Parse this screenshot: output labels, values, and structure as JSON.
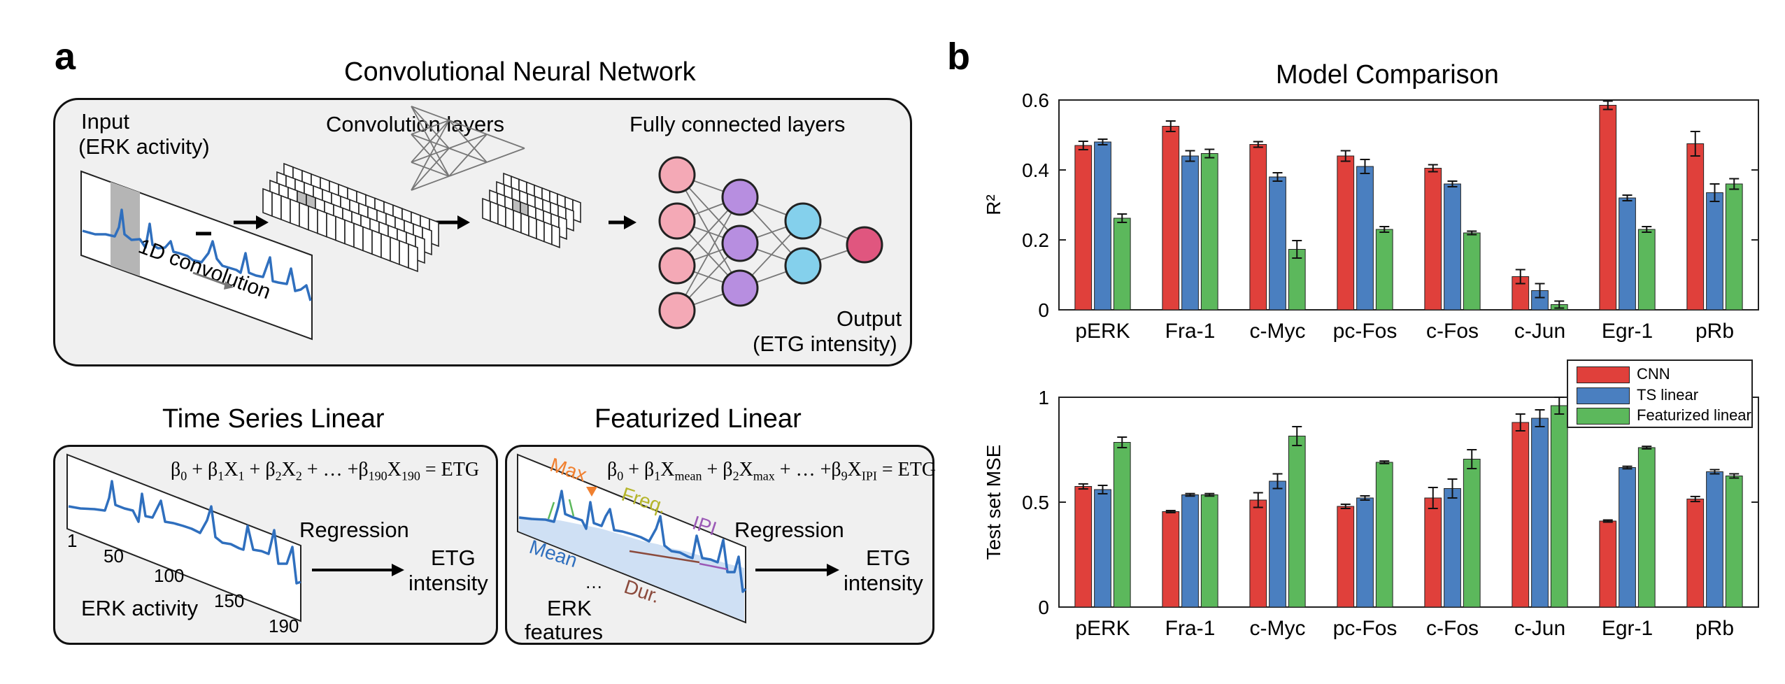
{
  "panel_a": {
    "letter": "a",
    "cnn": {
      "title": "Convolutional Neural Network",
      "input_label": "Input",
      "input_sub": "(ERK activity)",
      "conv_title": "Convolution layers",
      "fc_title": "Fully connected layers",
      "conv_caption": "1D convolution",
      "output_label": "Output",
      "output_sub": "(ETG intensity)"
    },
    "ts_linear": {
      "title": "Time Series Linear",
      "equation_parts": [
        "β",
        "0",
        " + β",
        "1",
        "X",
        "1",
        " + β",
        "2",
        "X",
        "2",
        " + … +β",
        "190",
        "X",
        "190",
        " = ETG"
      ],
      "regression": "Regression",
      "output": "ETG",
      "output_sub": "intensity",
      "axis_ticks": [
        "1",
        "50",
        "100",
        "150",
        "190"
      ],
      "xlabel": "ERK  activity"
    },
    "feat_linear": {
      "title": "Featurized Linear",
      "equation_parts": [
        "β",
        "0",
        " + β",
        "1",
        "X",
        "mean",
        " + β",
        "2",
        "X",
        "max",
        " + … +β",
        "9",
        "X",
        "IPI",
        " = ETG"
      ],
      "regression": "Regression",
      "output": "ETG",
      "output_sub": "intensity",
      "feature_labels": {
        "max": "Max",
        "freq": "Freq.",
        "ipi": "IPI",
        "mean": "Mean",
        "dots": "…",
        "dur": "Dur."
      },
      "erk": "ERK",
      "features": "features"
    }
  },
  "panel_b": {
    "letter": "b",
    "colors": {
      "CNN": "#e0403b",
      "TS linear": "#4a7fc0",
      "Featurized linear": "#5cb85c"
    },
    "legend": [
      "CNN",
      "TS linear",
      "Featurized linear"
    ]
  },
  "chart_data": [
    {
      "type": "bar",
      "title": "Model Comparison",
      "ylabel": "R²",
      "xlabel": "",
      "ylim": [
        0,
        0.6
      ],
      "yticks": [
        "0",
        "0.2",
        "0.4",
        "0.6"
      ],
      "categories": [
        "pERK",
        "Fra-1",
        "c-Myc",
        "pc-Fos",
        "c-Fos",
        "c-Jun",
        "Egr-1",
        "pRb"
      ],
      "series": [
        {
          "name": "CNN",
          "values": [
            0.47,
            0.525,
            0.473,
            0.44,
            0.405,
            0.095,
            0.585,
            0.475
          ],
          "errors": [
            0.012,
            0.015,
            0.008,
            0.015,
            0.01,
            0.02,
            0.012,
            0.035
          ]
        },
        {
          "name": "TS linear",
          "values": [
            0.48,
            0.44,
            0.38,
            0.41,
            0.36,
            0.055,
            0.32,
            0.335
          ],
          "errors": [
            0.008,
            0.015,
            0.012,
            0.02,
            0.008,
            0.02,
            0.008,
            0.025
          ]
        },
        {
          "name": "Featurized linear",
          "values": [
            0.262,
            0.447,
            0.173,
            0.23,
            0.22,
            0.015,
            0.23,
            0.36
          ],
          "errors": [
            0.012,
            0.012,
            0.025,
            0.008,
            0.005,
            0.01,
            0.008,
            0.015
          ]
        }
      ]
    },
    {
      "type": "bar",
      "title": "",
      "ylabel": "Test set MSE",
      "xlabel": "",
      "ylim": [
        0,
        1
      ],
      "yticks": [
        "0",
        "0.5",
        "1"
      ],
      "categories": [
        "pERK",
        "Fra-1",
        "c-Myc",
        "pc-Fos",
        "c-Fos",
        "c-Jun",
        "Egr-1",
        "pRb"
      ],
      "legend_placement": "top-right",
      "series": [
        {
          "name": "CNN",
          "values": [
            0.575,
            0.455,
            0.51,
            0.48,
            0.52,
            0.88,
            0.41,
            0.515
          ],
          "errors": [
            0.012,
            0.005,
            0.035,
            0.01,
            0.05,
            0.04,
            0.005,
            0.012
          ]
        },
        {
          "name": "TS linear",
          "values": [
            0.56,
            0.535,
            0.6,
            0.52,
            0.565,
            0.9,
            0.665,
            0.645
          ],
          "errors": [
            0.02,
            0.006,
            0.035,
            0.01,
            0.045,
            0.04,
            0.006,
            0.01
          ]
        },
        {
          "name": "Featurized linear",
          "values": [
            0.785,
            0.535,
            0.815,
            0.69,
            0.705,
            0.96,
            0.76,
            0.625
          ],
          "errors": [
            0.025,
            0.006,
            0.045,
            0.006,
            0.045,
            0.04,
            0.006,
            0.01
          ]
        }
      ]
    }
  ]
}
